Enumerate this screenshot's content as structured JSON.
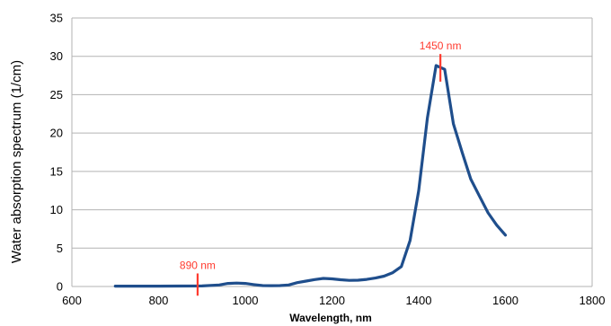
{
  "chart_data": {
    "type": "line",
    "title": "",
    "xlabel": "Wavelength, nm",
    "ylabel": "Water absorption spectrum (1/cm)",
    "xlim": [
      600,
      1800
    ],
    "ylim": [
      0,
      35
    ],
    "xticks": [
      600,
      800,
      1000,
      1200,
      1400,
      1600,
      1800
    ],
    "yticks": [
      0,
      5,
      10,
      15,
      20,
      25,
      30,
      35
    ],
    "grid": "horizontal",
    "line_color": "#1f4e8c",
    "annotation_color": "#ff3b2f",
    "series": [
      {
        "x": [
          700,
          800,
          900,
          940,
          960,
          980,
          1000,
          1020,
          1040,
          1060,
          1080,
          1100,
          1120,
          1140,
          1160,
          1180,
          1200,
          1220,
          1240,
          1260,
          1280,
          1300,
          1320,
          1340,
          1360,
          1380,
          1400,
          1420,
          1440,
          1460,
          1480,
          1500,
          1520,
          1540,
          1560,
          1580,
          1600
        ],
        "y": [
          0.05,
          0.05,
          0.07,
          0.2,
          0.4,
          0.45,
          0.4,
          0.25,
          0.12,
          0.1,
          0.12,
          0.2,
          0.5,
          0.7,
          0.9,
          1.05,
          1.0,
          0.88,
          0.8,
          0.82,
          0.92,
          1.1,
          1.35,
          1.8,
          2.6,
          6.0,
          12.5,
          22.0,
          28.8,
          28.3,
          21.2,
          17.5,
          14.0,
          11.8,
          9.6,
          8.0,
          6.7
        ]
      }
    ],
    "annotations": [
      {
        "label": "890 nm",
        "x": 890,
        "y_from": -1.2,
        "y_to": 1.7
      },
      {
        "label": "1450 nm",
        "x": 1450,
        "y_from": 26.7,
        "y_to": 30.3
      }
    ]
  }
}
